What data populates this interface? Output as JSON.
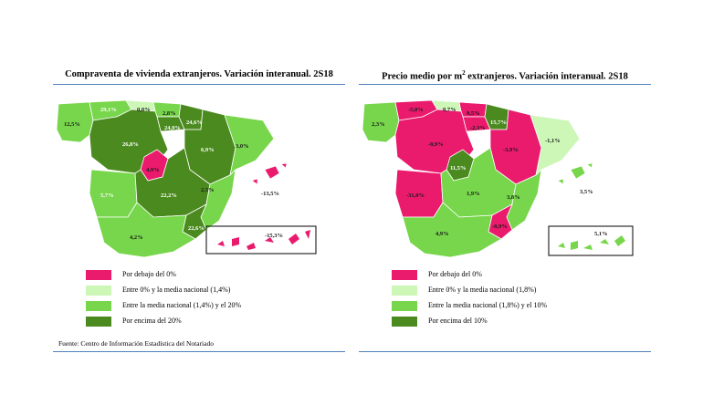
{
  "colors": {
    "below_zero": "#ea1a6d",
    "light_green": "#ccf7b7",
    "mid_green": "#77d64b",
    "dark_green": "#4b8a1f",
    "rule": "#4f81bd"
  },
  "left_map": {
    "title": "Compraventa de vivienda extranjeros. Variación interanual. 2S18",
    "labels": {
      "galicia": "12,5%",
      "asturias": "29,1%",
      "cantabria": "0,0%",
      "pais_vasco": "2,8%",
      "navarra": "24,6%",
      "rioja": "24,9%",
      "castilla_leon": "26,8%",
      "aragon": "6,9%",
      "cataluna": "3,0%",
      "madrid": "4,9%",
      "extremadura": "5,7%",
      "castilla_la_mancha": "22,2%",
      "valencia": "2,5%",
      "murcia": "22,6%",
      "andalucia": "4,2%",
      "baleares": "-13,5%",
      "canarias": "-15,3%"
    },
    "legend": [
      {
        "label": "Por debajo del 0%"
      },
      {
        "label": "Entre 0% y la media nacional (1,4%)"
      },
      {
        "label": "Entre la media nacional (1,4%) y  el 20%"
      },
      {
        "label": "Por encima del 20%"
      }
    ]
  },
  "right_map": {
    "title_main": "Precio medio por m",
    "title_sup": "2",
    "title_rest": " extranjeros. Variación interanual. 2S18",
    "labels": {
      "galicia": "2,3%",
      "asturias": "-5,0%",
      "cantabria": "0,7%",
      "pais_vasco": "9,5%",
      "navarra": "15,7%",
      "rioja": "-2,3%",
      "castilla_leon": "-0,9%",
      "aragon": "-3,9%",
      "cataluna": "-1,1%",
      "madrid": "11,5%",
      "extremadura": "-31,0%",
      "castilla_la_mancha": "1,9%",
      "valencia": "3,8%",
      "murcia": "-0,9%",
      "andalucia": "4,9%",
      "baleares": "3,5%",
      "canarias": "5,1%"
    },
    "legend": [
      {
        "label": "Por debajo del 0%"
      },
      {
        "label": "Entre 0% y la media nacional (1,8%)"
      },
      {
        "label": "Entre la media nacional (1,8%) y  el 10%"
      },
      {
        "label": "Por encima del 10%"
      }
    ]
  },
  "source": "Fuente: Centro de Información Estadística del Notariado"
}
